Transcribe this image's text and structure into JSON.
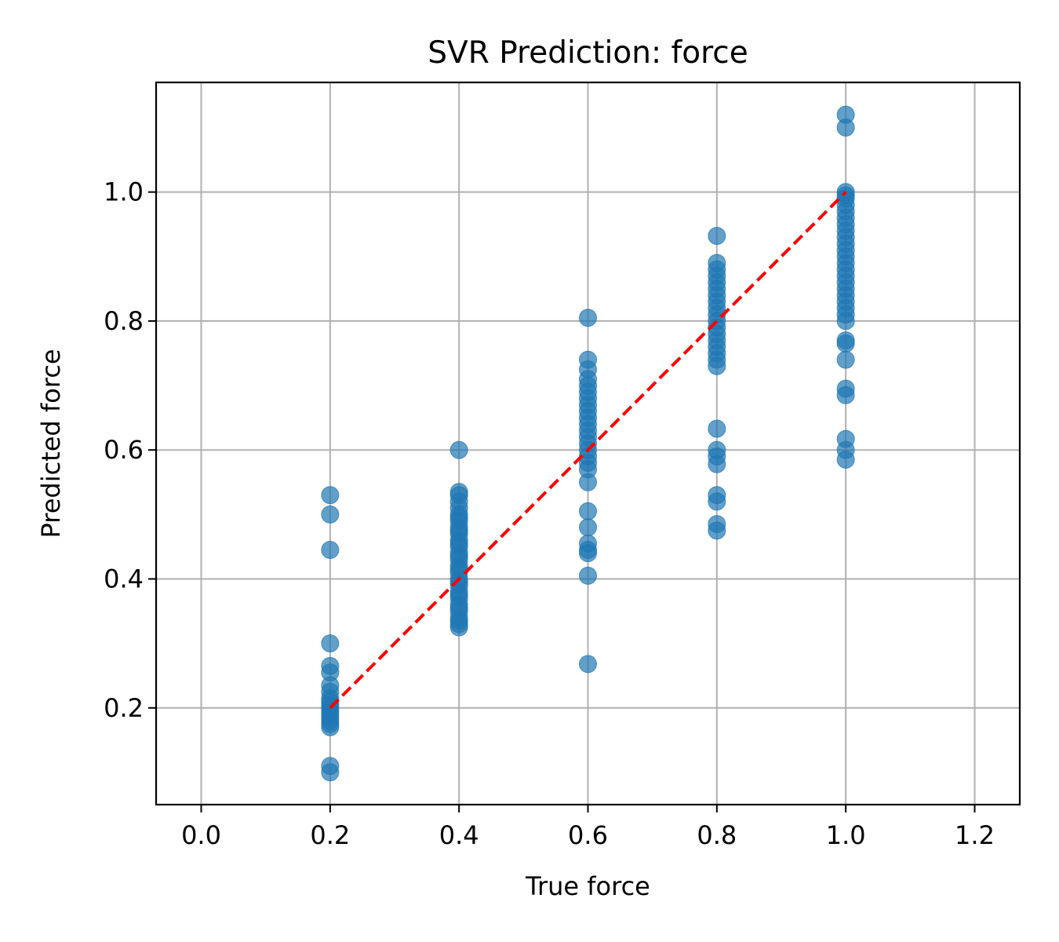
{
  "chart_data": {
    "type": "scatter",
    "title": "SVR Prediction: force",
    "xlabel": "True force",
    "ylabel": "Predicted force",
    "xlim": [
      -0.07,
      1.27
    ],
    "ylim": [
      0.05,
      1.17
    ],
    "xticks": [
      "0.0",
      "0.2",
      "0.4",
      "0.6",
      "0.8",
      "1.0",
      "1.2"
    ],
    "yticks": [
      "0.2",
      "0.4",
      "0.6",
      "0.8",
      "1.0"
    ],
    "grid": true,
    "colors": {
      "points": "#1f77b4",
      "reference_line": "#ff0000",
      "grid": "#b0b0b0"
    },
    "reference_line": {
      "x": [
        0.2,
        1.0
      ],
      "y": [
        0.2,
        1.0
      ],
      "style": "dashed"
    },
    "points": [
      {
        "x": 0.2,
        "y": [
          0.53,
          0.5,
          0.445,
          0.3,
          0.265,
          0.255,
          0.235,
          0.225,
          0.215,
          0.21,
          0.205,
          0.2,
          0.195,
          0.19,
          0.185,
          0.18,
          0.175,
          0.17,
          0.11,
          0.1
        ]
      },
      {
        "x": 0.4,
        "y": [
          0.6,
          0.535,
          0.53,
          0.52,
          0.51,
          0.5,
          0.495,
          0.49,
          0.48,
          0.475,
          0.47,
          0.46,
          0.455,
          0.45,
          0.44,
          0.435,
          0.43,
          0.42,
          0.415,
          0.41,
          0.4,
          0.395,
          0.39,
          0.38,
          0.375,
          0.37,
          0.36,
          0.355,
          0.35,
          0.34,
          0.335,
          0.33,
          0.325
        ]
      },
      {
        "x": 0.6,
        "y": [
          0.805,
          0.74,
          0.725,
          0.71,
          0.7,
          0.69,
          0.68,
          0.67,
          0.66,
          0.65,
          0.64,
          0.63,
          0.62,
          0.61,
          0.6,
          0.59,
          0.58,
          0.57,
          0.55,
          0.505,
          0.48,
          0.455,
          0.445,
          0.44,
          0.405,
          0.268
        ]
      },
      {
        "x": 0.8,
        "y": [
          0.932,
          0.89,
          0.88,
          0.87,
          0.86,
          0.85,
          0.84,
          0.83,
          0.82,
          0.81,
          0.8,
          0.79,
          0.78,
          0.77,
          0.76,
          0.75,
          0.74,
          0.73,
          0.633,
          0.6,
          0.59,
          0.578,
          0.53,
          0.52,
          0.485,
          0.475
        ]
      },
      {
        "x": 1.0,
        "y": [
          1.12,
          1.1,
          1.0,
          0.995,
          0.99,
          0.98,
          0.97,
          0.96,
          0.95,
          0.94,
          0.93,
          0.92,
          0.91,
          0.9,
          0.89,
          0.88,
          0.87,
          0.86,
          0.85,
          0.84,
          0.83,
          0.82,
          0.81,
          0.8,
          0.77,
          0.765,
          0.74,
          0.695,
          0.685,
          0.617,
          0.6,
          0.585
        ]
      }
    ]
  }
}
